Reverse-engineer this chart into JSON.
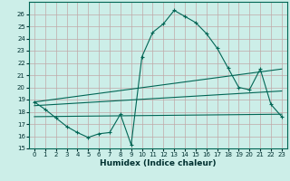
{
  "xlabel": "Humidex (Indice chaleur)",
  "background_color": "#cceee8",
  "grid_color": "#c0a8a8",
  "line_color": "#006655",
  "xlim": [
    -0.5,
    23.5
  ],
  "ylim": [
    15,
    27
  ],
  "yticks": [
    15,
    16,
    17,
    18,
    19,
    20,
    21,
    22,
    23,
    24,
    25,
    26
  ],
  "xticks": [
    0,
    1,
    2,
    3,
    4,
    5,
    6,
    7,
    8,
    9,
    10,
    11,
    12,
    13,
    14,
    15,
    16,
    17,
    18,
    19,
    20,
    21,
    22,
    23
  ],
  "line1_x": [
    0,
    1,
    2,
    3,
    4,
    5,
    6,
    7,
    8,
    9,
    10,
    11,
    12,
    13,
    14,
    15,
    16,
    17,
    18,
    19,
    20,
    21,
    22,
    23
  ],
  "line1_y": [
    18.8,
    18.2,
    17.5,
    16.8,
    16.3,
    15.9,
    16.2,
    16.3,
    17.8,
    15.3,
    22.5,
    24.5,
    25.2,
    26.3,
    25.8,
    25.3,
    24.4,
    23.2,
    21.6,
    20.0,
    19.8,
    21.5,
    18.6,
    17.6
  ],
  "line2_x": [
    0,
    23
  ],
  "line2_y": [
    18.8,
    21.5
  ],
  "line3_x": [
    0,
    23
  ],
  "line3_y": [
    18.5,
    19.7
  ],
  "line4_x": [
    0,
    23
  ],
  "line4_y": [
    17.6,
    17.8
  ],
  "marker": "+"
}
